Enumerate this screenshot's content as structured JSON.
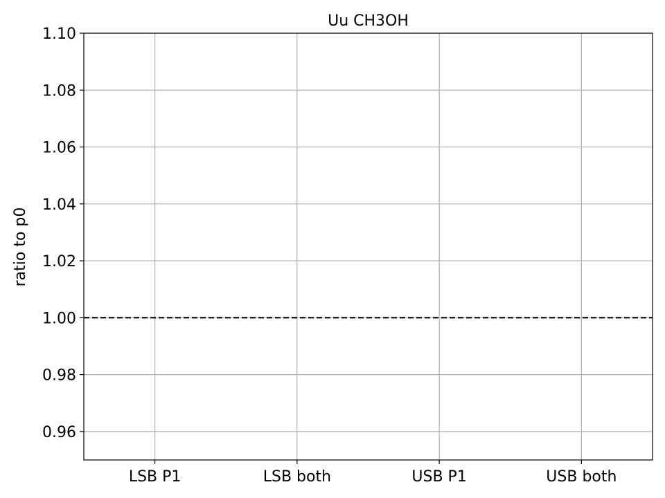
{
  "chart_data": {
    "type": "line",
    "title": "Uu CH3OH",
    "xlabel": "",
    "ylabel": "ratio to p0",
    "categories": [
      "LSB P1",
      "LSB both",
      "USB P1",
      "USB both"
    ],
    "ylim": [
      0.95,
      1.1
    ],
    "yticks": [
      0.96,
      0.98,
      1.0,
      1.02,
      1.04,
      1.06,
      1.08,
      1.1
    ],
    "ytick_labels": [
      "0.96",
      "0.98",
      "1.00",
      "1.02",
      "1.04",
      "1.06",
      "1.08",
      "1.10"
    ],
    "reference_line": {
      "y": 1.0,
      "style": "dashed",
      "color": "#000000"
    },
    "series": [],
    "grid": true
  }
}
